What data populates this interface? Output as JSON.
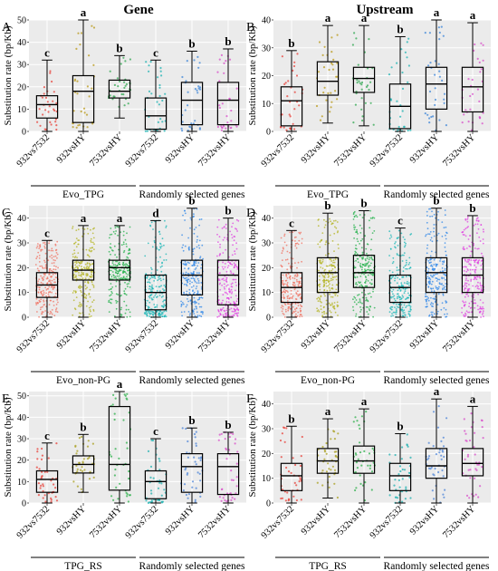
{
  "columns": [
    "Gene",
    "Upstream"
  ],
  "y_axis_label": "Substitution rate (bp/Kb)",
  "categories": [
    "932vs7532",
    "932vsHY",
    "7532vsHY",
    "932vs7532",
    "932vsHY",
    "7532vsHY"
  ],
  "random_group_label": "Randomly selected genes",
  "panel_color_schemes": {
    "row_ab": [
      "#e8413a",
      "#b99a1a",
      "#31a852",
      "#1fb3b3",
      "#3d86d8",
      "#d84fc9"
    ],
    "row_cd": [
      "#f07060",
      "#b3b320",
      "#22b04a",
      "#17b6b6",
      "#2f87e8",
      "#e040e0"
    ],
    "row_ef": [
      "#e8413a",
      "#a9a020",
      "#2fb04c",
      "#1fb0b0",
      "#4f86d8",
      "#d84fc9"
    ]
  },
  "chart_data": [
    {
      "panel": "A",
      "title": "Gene",
      "type": "box",
      "ylim": [
        0,
        50
      ],
      "yticks": [
        0,
        10,
        20,
        30,
        40,
        50
      ],
      "group_label": "Evo_TPG",
      "letters": [
        "c",
        "a",
        "b",
        "c",
        "b",
        "b"
      ],
      "boxes": [
        {
          "min": 0,
          "q1": 6,
          "median": 12,
          "q3": 16,
          "max": 32
        },
        {
          "min": 0,
          "q1": 4,
          "median": 18,
          "q3": 25,
          "max": 50
        },
        {
          "min": 6,
          "q1": 15,
          "median": 18,
          "q3": 23,
          "max": 34
        },
        {
          "min": 0,
          "q1": 1,
          "median": 7,
          "q3": 15,
          "max": 32
        },
        {
          "min": 0,
          "q1": 3,
          "median": 14,
          "q3": 22,
          "max": 36
        },
        {
          "min": 0,
          "q1": 3,
          "median": 14,
          "q3": 22,
          "max": 37
        }
      ]
    },
    {
      "panel": "B",
      "title": "Upstream",
      "type": "box",
      "ylim": [
        0,
        40
      ],
      "yticks": [
        0,
        10,
        20,
        30,
        40
      ],
      "group_label": "Evo_TPG",
      "letters": [
        "b",
        "a",
        "a",
        "b",
        "a",
        "a"
      ],
      "boxes": [
        {
          "min": 0,
          "q1": 2,
          "median": 11,
          "q3": 16,
          "max": 29
        },
        {
          "min": 3,
          "q1": 13,
          "median": 18,
          "q3": 25,
          "max": 38
        },
        {
          "min": 2,
          "q1": 14,
          "median": 19,
          "q3": 23,
          "max": 38
        },
        {
          "min": 0,
          "q1": 1,
          "median": 9,
          "q3": 17,
          "max": 34
        },
        {
          "min": 0,
          "q1": 8,
          "median": 17,
          "q3": 23,
          "max": 40
        },
        {
          "min": 0,
          "q1": 7,
          "median": 16,
          "q3": 23,
          "max": 39
        }
      ]
    },
    {
      "panel": "C",
      "title": "",
      "type": "box",
      "ylim": [
        0,
        45
      ],
      "yticks": [
        0,
        10,
        20,
        30,
        40
      ],
      "group_label": "Evo_non-PG",
      "letters": [
        "c",
        "a",
        "a",
        "d",
        "b",
        "b"
      ],
      "boxes": [
        {
          "min": 0,
          "q1": 8,
          "median": 13,
          "q3": 18,
          "max": 31
        },
        {
          "min": 0,
          "q1": 15,
          "median": 19,
          "q3": 23,
          "max": 37
        },
        {
          "min": 0,
          "q1": 15,
          "median": 20,
          "q3": 23,
          "max": 37
        },
        {
          "min": 0,
          "q1": 3,
          "median": 10,
          "q3": 17,
          "max": 39
        },
        {
          "min": 0,
          "q1": 9,
          "median": 17,
          "q3": 23,
          "max": 44
        },
        {
          "min": 0,
          "q1": 5,
          "median": 17,
          "q3": 23,
          "max": 40
        }
      ]
    },
    {
      "panel": "D",
      "title": "",
      "type": "box",
      "ylim": [
        0,
        45
      ],
      "yticks": [
        0,
        10,
        20,
        30,
        40
      ],
      "group_label": "Evo_non-PG",
      "letters": [
        "c",
        "b",
        "b",
        "c",
        "b",
        "b"
      ],
      "boxes": [
        {
          "min": 0,
          "q1": 6,
          "median": 12,
          "q3": 18,
          "max": 35
        },
        {
          "min": 0,
          "q1": 10,
          "median": 18,
          "q3": 24,
          "max": 42
        },
        {
          "min": 0,
          "q1": 12,
          "median": 18,
          "q3": 25,
          "max": 43
        },
        {
          "min": 0,
          "q1": 6,
          "median": 12,
          "q3": 17,
          "max": 36
        },
        {
          "min": 0,
          "q1": 10,
          "median": 18,
          "q3": 24,
          "max": 44
        },
        {
          "min": 0,
          "q1": 10,
          "median": 17,
          "q3": 24,
          "max": 41
        }
      ]
    },
    {
      "panel": "E",
      "title": "",
      "type": "box",
      "ylim": [
        0,
        52
      ],
      "yticks": [
        0,
        10,
        20,
        30,
        40,
        50
      ],
      "group_label": "TPG_RS",
      "letters": [
        "c",
        "b",
        "a",
        "c",
        "b",
        "b"
      ],
      "boxes": [
        {
          "min": 0,
          "q1": 5,
          "median": 11,
          "q3": 15,
          "max": 28
        },
        {
          "min": 5,
          "q1": 14,
          "median": 18,
          "q3": 22,
          "max": 32
        },
        {
          "min": 0,
          "q1": 6,
          "median": 18,
          "q3": 45,
          "max": 52
        },
        {
          "min": 0,
          "q1": 2,
          "median": 10,
          "q3": 15,
          "max": 30
        },
        {
          "min": 0,
          "q1": 5,
          "median": 17,
          "q3": 23,
          "max": 35
        },
        {
          "min": 0,
          "q1": 4,
          "median": 17,
          "q3": 23,
          "max": 33
        }
      ]
    },
    {
      "panel": "F",
      "title": "",
      "type": "box",
      "ylim": [
        0,
        45
      ],
      "yticks": [
        0,
        10,
        20,
        30,
        40
      ],
      "group_label": "TPG_RS",
      "letters": [
        "b",
        "a",
        "a",
        "b",
        "a",
        "a"
      ],
      "boxes": [
        {
          "min": 0,
          "q1": 5,
          "median": 11,
          "q3": 16,
          "max": 31
        },
        {
          "min": 2,
          "q1": 12,
          "median": 17,
          "q3": 22,
          "max": 34
        },
        {
          "min": 0,
          "q1": 12,
          "median": 17,
          "q3": 23,
          "max": 38
        },
        {
          "min": 0,
          "q1": 5,
          "median": 11,
          "q3": 16,
          "max": 28
        },
        {
          "min": 0,
          "q1": 10,
          "median": 15,
          "q3": 22,
          "max": 42
        },
        {
          "min": 0,
          "q1": 11,
          "median": 16,
          "q3": 22,
          "max": 39
        }
      ]
    }
  ]
}
